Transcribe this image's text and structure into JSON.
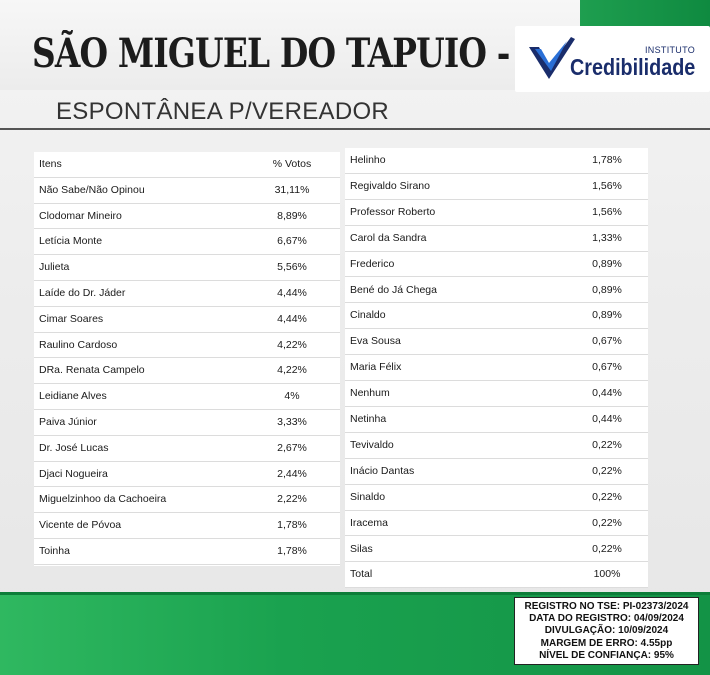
{
  "header": {
    "title": "SÃO MIGUEL DO TAPUIO - PI",
    "subtitle": "ESPONTÂNEA P/VEREADOR",
    "logo": {
      "instituto": "INSTITUTO",
      "name": "Credibilidade",
      "icon": "check-mark-icon"
    }
  },
  "colors": {
    "green": "#1aa24f",
    "logo_blue": "#1a2d6b",
    "logo_accent": "#2a6fd6"
  },
  "chart_data": {
    "type": "table",
    "columns": [
      "Itens",
      "% Votos"
    ],
    "rows_left": [
      {
        "name": "Não Sabe/Não Opinou",
        "value": "31,11%"
      },
      {
        "name": "Clodomar Mineiro",
        "value": "8,89%"
      },
      {
        "name": "Letícia Monte",
        "value": "6,67%"
      },
      {
        "name": "Julieta",
        "value": "5,56%"
      },
      {
        "name": "Laíde do Dr. Jáder",
        "value": "4,44%"
      },
      {
        "name": "Cimar Soares",
        "value": "4,44%"
      },
      {
        "name": "Raulino Cardoso",
        "value": "4,22%"
      },
      {
        "name": "DRa. Renata Campelo",
        "value": "4,22%"
      },
      {
        "name": "Leidiane Alves",
        "value": "4%"
      },
      {
        "name": "Paiva Júnior",
        "value": "3,33%"
      },
      {
        "name": "Dr. José Lucas",
        "value": "2,67%"
      },
      {
        "name": "Djaci Nogueira",
        "value": "2,44%"
      },
      {
        "name": "Miguelzinhoo da Cachoeira",
        "value": "2,22%"
      },
      {
        "name": "Vicente de Póvoa",
        "value": "1,78%"
      },
      {
        "name": "Toinha",
        "value": "1,78%"
      }
    ],
    "rows_right": [
      {
        "name": "Helinho",
        "value": "1,78%"
      },
      {
        "name": "Regivaldo Sirano",
        "value": "1,56%"
      },
      {
        "name": "Professor Roberto",
        "value": "1,56%"
      },
      {
        "name": "Carol da Sandra",
        "value": "1,33%"
      },
      {
        "name": "Frederico",
        "value": "0,89%"
      },
      {
        "name": "Bené do Já Chega",
        "value": "0,89%"
      },
      {
        "name": "Cinaldo",
        "value": "0,89%"
      },
      {
        "name": "Eva Sousa",
        "value": "0,67%"
      },
      {
        "name": "Maria Félix",
        "value": "0,67%"
      },
      {
        "name": "Nenhum",
        "value": "0,44%"
      },
      {
        "name": "Netinha",
        "value": "0,44%"
      },
      {
        "name": "Tevivaldo",
        "value": "0,22%"
      },
      {
        "name": "Inácio Dantas",
        "value": "0,22%"
      },
      {
        "name": "Sinaldo",
        "value": "0,22%"
      },
      {
        "name": "Iracema",
        "value": "0,22%"
      },
      {
        "name": "Silas",
        "value": "0,22%"
      },
      {
        "name": "Total",
        "value": "100%"
      }
    ]
  },
  "footer": {
    "registro_tse": "REGISTRO NO TSE: PI-02373/2024",
    "data_registro": "DATA DO REGISTRO: 04/09/2024",
    "divulgacao": "DIVULGAÇÃO: 10/09/2024",
    "margem_erro": "MARGEM DE ERRO: 4.55pp",
    "nivel_confianca": "NÍVEL DE CONFIANÇA: 95%"
  }
}
